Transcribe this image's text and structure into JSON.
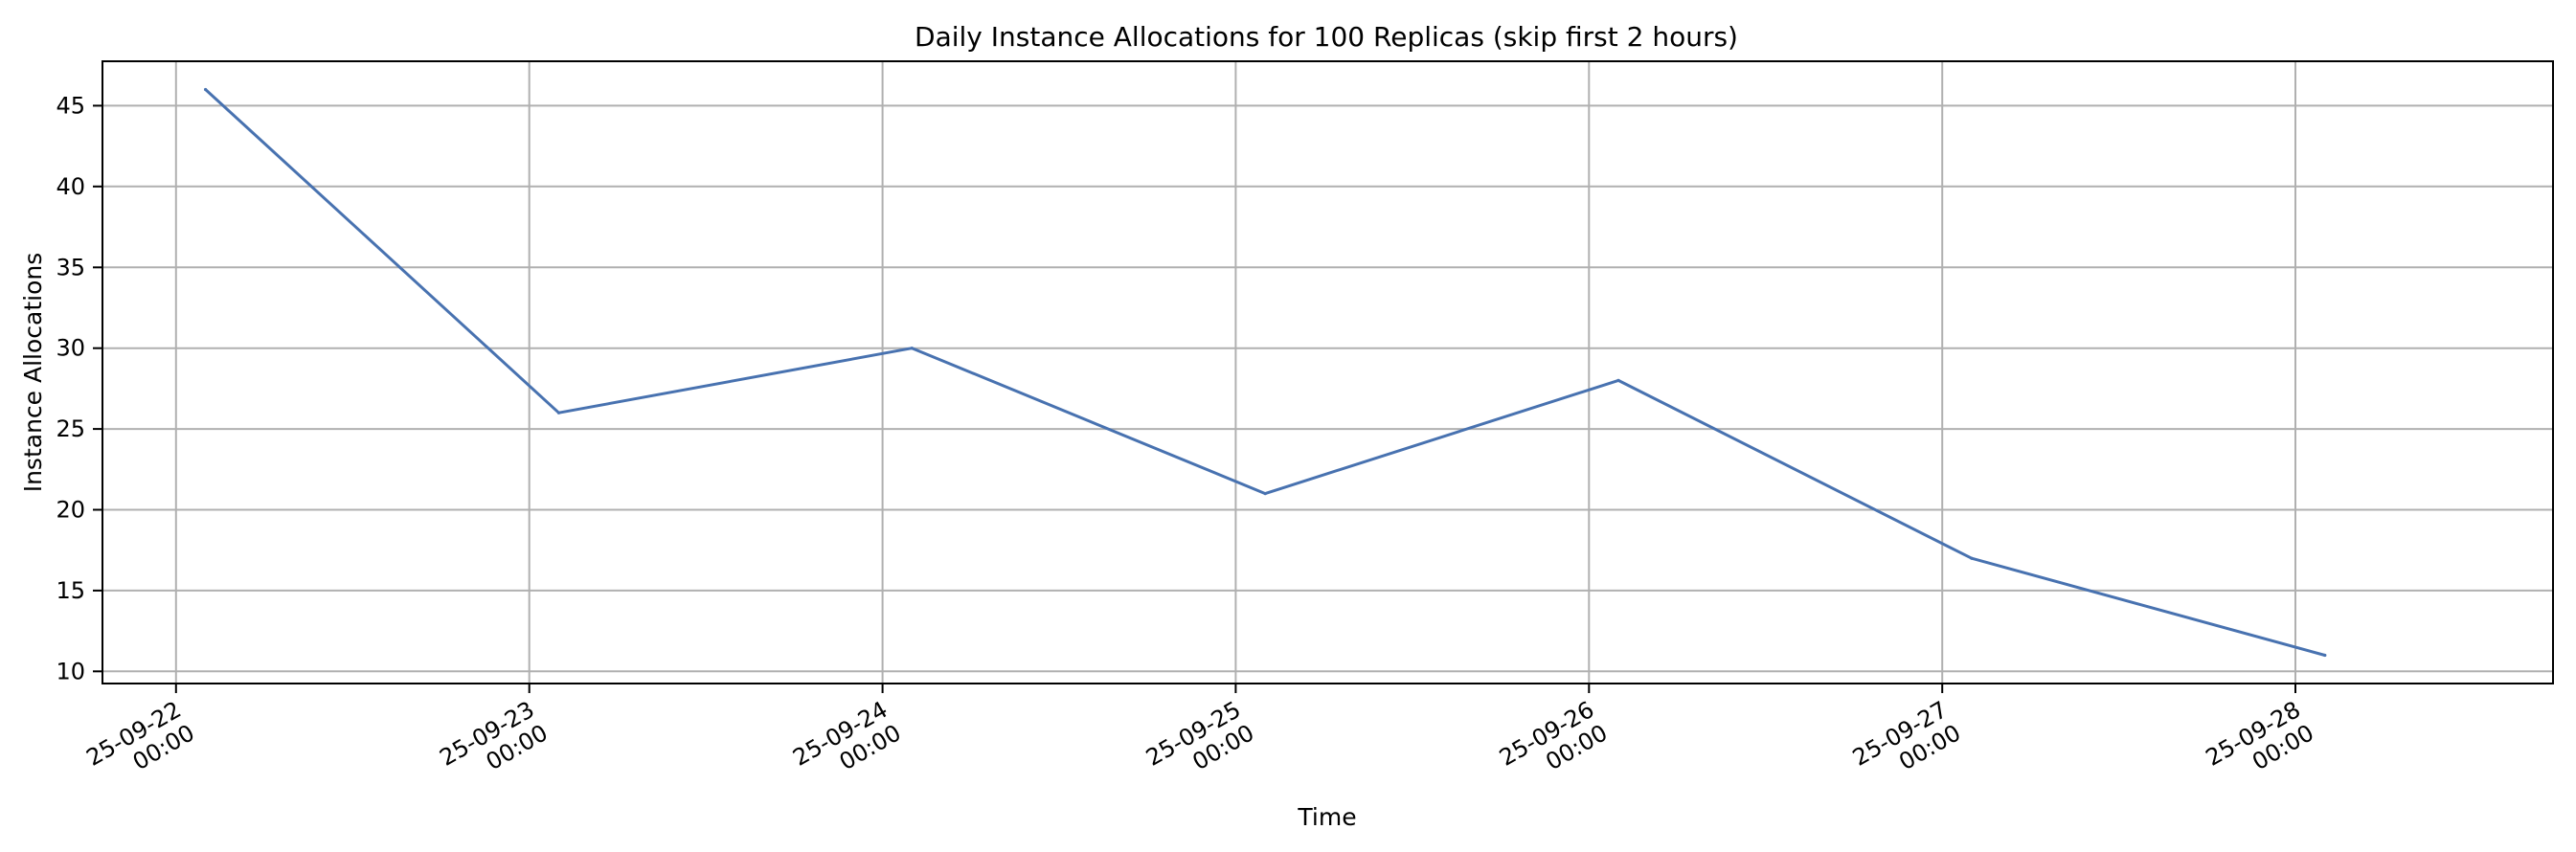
{
  "chart_data": {
    "type": "line",
    "title": "Daily Instance Allocations for 100 Replicas (skip first 2 hours)",
    "xlabel": "Time",
    "ylabel": "Instance Allocations",
    "grid": true,
    "x_ticks": [
      {
        "x": "2025-09-22T00:00",
        "date": "25-09-22",
        "time": "00:00"
      },
      {
        "x": "2025-09-23T00:00",
        "date": "25-09-23",
        "time": "00:00"
      },
      {
        "x": "2025-09-24T00:00",
        "date": "25-09-24",
        "time": "00:00"
      },
      {
        "x": "2025-09-25T00:00",
        "date": "25-09-25",
        "time": "00:00"
      },
      {
        "x": "2025-09-26T00:00",
        "date": "25-09-26",
        "time": "00:00"
      },
      {
        "x": "2025-09-27T00:00",
        "date": "25-09-27",
        "time": "00:00"
      },
      {
        "x": "2025-09-28T00:00",
        "date": "25-09-28",
        "time": "00:00"
      }
    ],
    "y_ticks": [
      10,
      15,
      20,
      25,
      30,
      35,
      40,
      45
    ],
    "xlim": [
      "2025-09-21T19:00",
      "2025-09-28T17:30"
    ],
    "ylim": [
      9.25,
      47.75
    ],
    "series": [
      {
        "color": "#4872b0",
        "points": [
          {
            "x": "2025-09-22T02:00",
            "y": 46
          },
          {
            "x": "2025-09-23T02:00",
            "y": 26
          },
          {
            "x": "2025-09-24T02:00",
            "y": 30
          },
          {
            "x": "2025-09-25T02:00",
            "y": 21
          },
          {
            "x": "2025-09-26T02:00",
            "y": 28
          },
          {
            "x": "2025-09-27T02:00",
            "y": 17
          },
          {
            "x": "2025-09-28T02:00",
            "y": 11
          }
        ]
      }
    ]
  }
}
